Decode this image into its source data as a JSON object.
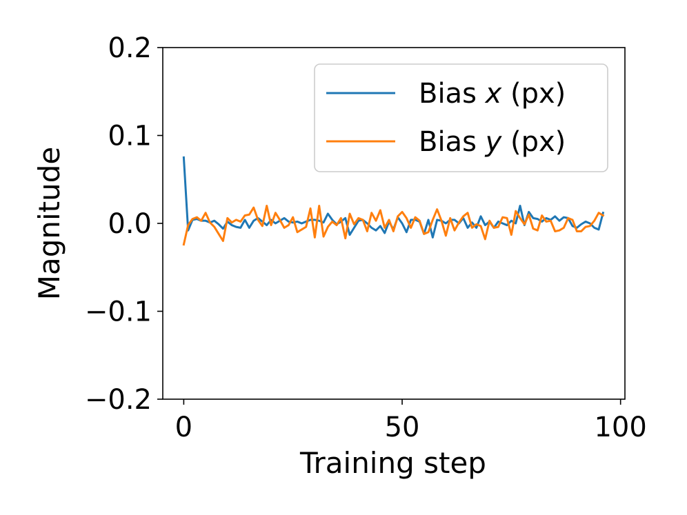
{
  "chart_data": {
    "type": "line",
    "xlabel": "Training step",
    "ylabel": "Magnitude",
    "xlim": [
      -4.8,
      101
    ],
    "ylim": [
      -0.2,
      0.2
    ],
    "x_ticks": [
      0,
      50,
      100
    ],
    "x_tick_labels": [
      "0",
      "50",
      "100"
    ],
    "y_ticks": [
      0.2,
      0.1,
      0.0,
      -0.1,
      -0.2
    ],
    "y_tick_labels": [
      "0.2",
      "0.1",
      "0.0",
      "−0.1",
      "−0.2"
    ],
    "grid": false,
    "legend": {
      "placement": "top-right",
      "entries": [
        {
          "prefix": "Bias ",
          "var": "x",
          "suffix": " (px)"
        },
        {
          "prefix": "Bias ",
          "var": "y",
          "suffix": " (px)"
        }
      ]
    },
    "series": [
      {
        "name": "Bias x (px)",
        "color": "#1f77b4",
        "values": [
          0.075,
          -0.008,
          0.004,
          0.005,
          0.003,
          0.003,
          0.001,
          0.003,
          -0.001,
          -0.006,
          0.002,
          -0.002,
          -0.004,
          -0.005,
          0.004,
          -0.005,
          0.003,
          0.006,
          0.002,
          -0.002,
          0.004,
          0.0,
          0.003,
          0.006,
          0.002,
          0.001,
          0.002,
          0.0,
          0.002,
          0.004,
          0.004,
          0.003,
          0.001,
          0.011,
          0.004,
          -0.001,
          0.002,
          0.006,
          -0.013,
          -0.005,
          0.003,
          0.004,
          0.0,
          -0.005,
          -0.008,
          -0.003,
          -0.011,
          0.002,
          -0.007,
          0.007,
          0.0,
          -0.01,
          0.004,
          0.004,
          0.002,
          -0.012,
          0.004,
          -0.016,
          0.004,
          0.003,
          0.0,
          0.004,
          0.004,
          0.0,
          0.006,
          -0.005,
          0.001,
          -0.005,
          0.008,
          -0.002,
          0.002,
          -0.005,
          0.002,
          0.0,
          -0.002,
          0.003,
          0.0,
          0.02,
          -0.002,
          0.013,
          0.006,
          0.005,
          0.002,
          0.006,
          0.004,
          0.008,
          0.003,
          0.007,
          0.006,
          -0.003,
          -0.005,
          -0.001,
          0.002,
          0.0,
          -0.005,
          -0.007,
          0.012
        ],
        "legend_index": 0
      },
      {
        "name": "Bias y (px)",
        "color": "#ff7f0e",
        "values": [
          -0.024,
          -0.002,
          0.005,
          0.007,
          0.003,
          0.012,
          0.001,
          -0.004,
          -0.012,
          -0.02,
          0.006,
          0.001,
          0.004,
          0.002,
          0.009,
          0.01,
          0.018,
          0.004,
          -0.003,
          0.02,
          -0.002,
          0.012,
          0.004,
          -0.005,
          -0.002,
          0.007,
          -0.01,
          -0.007,
          -0.004,
          0.017,
          -0.016,
          0.02,
          -0.015,
          -0.004,
          0.002,
          -0.002,
          0.006,
          -0.017,
          0.011,
          -0.001,
          0.006,
          0.004,
          -0.009,
          0.012,
          0.003,
          0.015,
          -0.005,
          0.004,
          -0.009,
          0.008,
          0.013,
          0.006,
          -0.005,
          0.007,
          0.003,
          -0.012,
          -0.01,
          0.004,
          0.016,
          0.003,
          -0.014,
          0.006,
          -0.008,
          0.001,
          0.008,
          0.012,
          -0.005,
          -0.001,
          -0.003,
          -0.018,
          0.003,
          -0.005,
          -0.004,
          0.007,
          0.006,
          -0.013,
          0.014,
          0.006,
          -0.001,
          0.01,
          -0.006,
          -0.008,
          0.009,
          0.002,
          0.003,
          -0.009,
          -0.008,
          -0.005,
          0.006,
          0.004,
          -0.009,
          -0.009,
          -0.004,
          -0.003,
          0.003,
          0.012,
          0.009
        ],
        "legend_index": 1
      }
    ]
  }
}
